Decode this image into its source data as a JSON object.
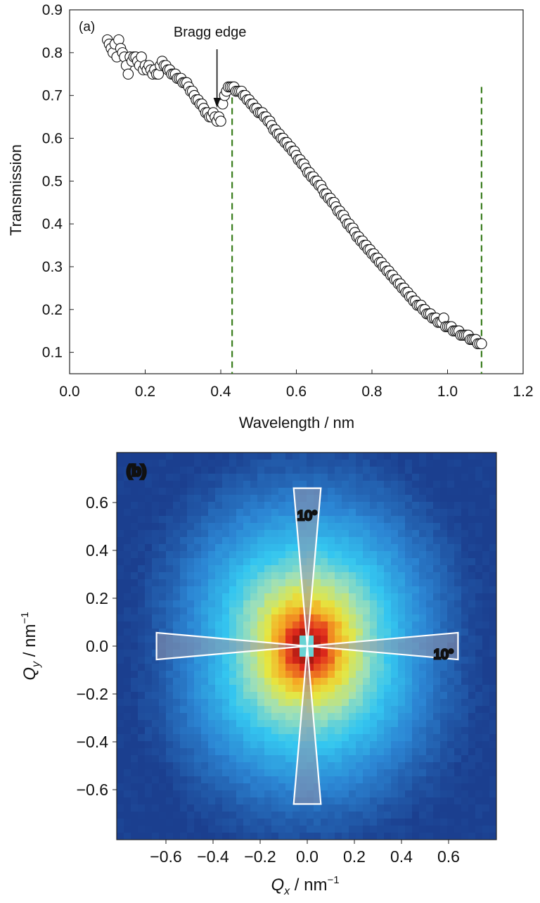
{
  "chart_data": [
    {
      "type": "scatter",
      "panel_label": "(a)",
      "xlabel": "Wavelength / nm",
      "ylabel": "Transmission",
      "xlim": [
        0.0,
        1.2
      ],
      "ylim": [
        0.05,
        0.9
      ],
      "xticks": [
        "0.0",
        "0.2",
        "0.4",
        "0.6",
        "0.8",
        "1.0",
        "1.2"
      ],
      "yticks": [
        "0.1",
        "0.2",
        "0.3",
        "0.4",
        "0.5",
        "0.6",
        "0.7",
        "0.8",
        "0.9"
      ],
      "annotation": {
        "text": "Bragg edge",
        "x": 0.39,
        "y": 0.655
      },
      "vlines": [
        0.43,
        1.09
      ],
      "vline_color": "#3a7d1e",
      "marker": "open-circle",
      "series": [
        {
          "points": [
            [
              0.1,
              0.83
            ],
            [
              0.105,
              0.82
            ],
            [
              0.11,
              0.81
            ],
            [
              0.115,
              0.8
            ],
            [
              0.12,
              0.82
            ],
            [
              0.125,
              0.79
            ],
            [
              0.13,
              0.83
            ],
            [
              0.135,
              0.81
            ],
            [
              0.14,
              0.8
            ],
            [
              0.145,
              0.79
            ],
            [
              0.15,
              0.77
            ],
            [
              0.155,
              0.75
            ],
            [
              0.16,
              0.79
            ],
            [
              0.165,
              0.78
            ],
            [
              0.17,
              0.79
            ],
            [
              0.175,
              0.79
            ],
            [
              0.18,
              0.78
            ],
            [
              0.185,
              0.77
            ],
            [
              0.19,
              0.79
            ],
            [
              0.195,
              0.76
            ],
            [
              0.2,
              0.77
            ],
            [
              0.205,
              0.76
            ],
            [
              0.21,
              0.77
            ],
            [
              0.215,
              0.76
            ],
            [
              0.22,
              0.75
            ],
            [
              0.225,
              0.76
            ],
            [
              0.23,
              0.75
            ],
            [
              0.235,
              0.75
            ],
            [
              0.24,
              0.77
            ],
            [
              0.245,
              0.78
            ],
            [
              0.25,
              0.77
            ],
            [
              0.255,
              0.77
            ],
            [
              0.26,
              0.76
            ],
            [
              0.265,
              0.76
            ],
            [
              0.27,
              0.75
            ],
            [
              0.275,
              0.75
            ],
            [
              0.28,
              0.75
            ],
            [
              0.285,
              0.74
            ],
            [
              0.29,
              0.74
            ],
            [
              0.295,
              0.74
            ],
            [
              0.3,
              0.73
            ],
            [
              0.305,
              0.73
            ],
            [
              0.31,
              0.73
            ],
            [
              0.315,
              0.72
            ],
            [
              0.32,
              0.71
            ],
            [
              0.325,
              0.71
            ],
            [
              0.33,
              0.7
            ],
            [
              0.335,
              0.69
            ],
            [
              0.34,
              0.69
            ],
            [
              0.345,
              0.68
            ],
            [
              0.35,
              0.68
            ],
            [
              0.355,
              0.67
            ],
            [
              0.36,
              0.66
            ],
            [
              0.365,
              0.66
            ],
            [
              0.37,
              0.65
            ],
            [
              0.375,
              0.65
            ],
            [
              0.38,
              0.66
            ],
            [
              0.385,
              0.65
            ],
            [
              0.39,
              0.64
            ],
            [
              0.395,
              0.65
            ],
            [
              0.4,
              0.64
            ],
            [
              0.405,
              0.68
            ],
            [
              0.41,
              0.7
            ],
            [
              0.415,
              0.71
            ],
            [
              0.42,
              0.72
            ],
            [
              0.425,
              0.72
            ],
            [
              0.43,
              0.72
            ],
            [
              0.435,
              0.72
            ],
            [
              0.44,
              0.71
            ],
            [
              0.445,
              0.71
            ],
            [
              0.45,
              0.71
            ],
            [
              0.455,
              0.71
            ],
            [
              0.46,
              0.7
            ],
            [
              0.465,
              0.7
            ],
            [
              0.47,
              0.69
            ],
            [
              0.475,
              0.69
            ],
            [
              0.48,
              0.68
            ],
            [
              0.485,
              0.68
            ],
            [
              0.49,
              0.67
            ],
            [
              0.495,
              0.67
            ],
            [
              0.5,
              0.66
            ],
            [
              0.505,
              0.66
            ],
            [
              0.51,
              0.66
            ],
            [
              0.515,
              0.65
            ],
            [
              0.52,
              0.65
            ],
            [
              0.525,
              0.64
            ],
            [
              0.53,
              0.64
            ],
            [
              0.535,
              0.63
            ],
            [
              0.54,
              0.62
            ],
            [
              0.545,
              0.62
            ],
            [
              0.55,
              0.61
            ],
            [
              0.555,
              0.61
            ],
            [
              0.56,
              0.6
            ],
            [
              0.565,
              0.6
            ],
            [
              0.57,
              0.59
            ],
            [
              0.575,
              0.59
            ],
            [
              0.58,
              0.58
            ],
            [
              0.585,
              0.58
            ],
            [
              0.59,
              0.57
            ],
            [
              0.595,
              0.57
            ],
            [
              0.6,
              0.56
            ],
            [
              0.605,
              0.55
            ],
            [
              0.61,
              0.55
            ],
            [
              0.615,
              0.54
            ],
            [
              0.62,
              0.54
            ],
            [
              0.625,
              0.53
            ],
            [
              0.63,
              0.52
            ],
            [
              0.635,
              0.52
            ],
            [
              0.64,
              0.51
            ],
            [
              0.645,
              0.51
            ],
            [
              0.65,
              0.5
            ],
            [
              0.655,
              0.5
            ],
            [
              0.66,
              0.49
            ],
            [
              0.665,
              0.49
            ],
            [
              0.67,
              0.48
            ],
            [
              0.675,
              0.47
            ],
            [
              0.68,
              0.47
            ],
            [
              0.685,
              0.46
            ],
            [
              0.69,
              0.46
            ],
            [
              0.695,
              0.45
            ],
            [
              0.7,
              0.45
            ],
            [
              0.705,
              0.44
            ],
            [
              0.71,
              0.43
            ],
            [
              0.715,
              0.43
            ],
            [
              0.72,
              0.42
            ],
            [
              0.725,
              0.42
            ],
            [
              0.73,
              0.41
            ],
            [
              0.735,
              0.4
            ],
            [
              0.74,
              0.4
            ],
            [
              0.745,
              0.39
            ],
            [
              0.75,
              0.39
            ],
            [
              0.755,
              0.38
            ],
            [
              0.76,
              0.37
            ],
            [
              0.765,
              0.37
            ],
            [
              0.77,
              0.36
            ],
            [
              0.775,
              0.36
            ],
            [
              0.78,
              0.35
            ],
            [
              0.785,
              0.35
            ],
            [
              0.79,
              0.34
            ],
            [
              0.795,
              0.34
            ],
            [
              0.8,
              0.33
            ],
            [
              0.805,
              0.33
            ],
            [
              0.81,
              0.32
            ],
            [
              0.815,
              0.32
            ],
            [
              0.82,
              0.31
            ],
            [
              0.825,
              0.31
            ],
            [
              0.83,
              0.3
            ],
            [
              0.835,
              0.3
            ],
            [
              0.84,
              0.29
            ],
            [
              0.845,
              0.29
            ],
            [
              0.85,
              0.28
            ],
            [
              0.855,
              0.28
            ],
            [
              0.86,
              0.27
            ],
            [
              0.865,
              0.27
            ],
            [
              0.87,
              0.26
            ],
            [
              0.875,
              0.26
            ],
            [
              0.88,
              0.25
            ],
            [
              0.885,
              0.25
            ],
            [
              0.89,
              0.24
            ],
            [
              0.895,
              0.24
            ],
            [
              0.9,
              0.23
            ],
            [
              0.905,
              0.23
            ],
            [
              0.91,
              0.22
            ],
            [
              0.915,
              0.22
            ],
            [
              0.92,
              0.21
            ],
            [
              0.925,
              0.21
            ],
            [
              0.93,
              0.21
            ],
            [
              0.935,
              0.2
            ],
            [
              0.94,
              0.2
            ],
            [
              0.945,
              0.19
            ],
            [
              0.95,
              0.19
            ],
            [
              0.955,
              0.19
            ],
            [
              0.96,
              0.18
            ],
            [
              0.965,
              0.18
            ],
            [
              0.97,
              0.18
            ],
            [
              0.975,
              0.17
            ],
            [
              0.98,
              0.17
            ],
            [
              0.985,
              0.17
            ],
            [
              0.99,
              0.18
            ],
            [
              0.995,
              0.16
            ],
            [
              1.0,
              0.16
            ],
            [
              1.005,
              0.16
            ],
            [
              1.01,
              0.16
            ],
            [
              1.015,
              0.15
            ],
            [
              1.02,
              0.15
            ],
            [
              1.025,
              0.15
            ],
            [
              1.03,
              0.15
            ],
            [
              1.035,
              0.14
            ],
            [
              1.04,
              0.14
            ],
            [
              1.045,
              0.14
            ],
            [
              1.05,
              0.14
            ],
            [
              1.055,
              0.14
            ],
            [
              1.06,
              0.13
            ],
            [
              1.065,
              0.13
            ],
            [
              1.07,
              0.13
            ],
            [
              1.075,
              0.13
            ],
            [
              1.08,
              0.12
            ],
            [
              1.085,
              0.12
            ],
            [
              1.09,
              0.12
            ]
          ]
        }
      ]
    },
    {
      "type": "heatmap",
      "panel_label": "(b)",
      "xlabel_main": "Q",
      "xlabel_sub": "x",
      "xlabel_unit": " / nm",
      "ylabel_main": "Q",
      "ylabel_sub": "y",
      "ylabel_unit": " / nm",
      "unit_exponent": "−1",
      "xlim": [
        -0.8,
        0.8
      ],
      "ylim": [
        -0.8,
        0.8
      ],
      "xticks": [
        "−0.6",
        "−0.4",
        "−0.2",
        "0.0",
        "0.2",
        "0.4",
        "0.6"
      ],
      "yticks": [
        "0.6",
        "0.4",
        "0.2",
        "0.0",
        "−0.2",
        "−0.4",
        "−0.6"
      ],
      "sector_angle_label": "10°",
      "sectors": [
        "vertical",
        "horizontal"
      ],
      "colormap": [
        "#1b3f8f",
        "#2c86d4",
        "#34c6f0",
        "#9fe0b8",
        "#e6e640",
        "#f5a623",
        "#e02a1c",
        "#8a0f0a"
      ]
    }
  ]
}
